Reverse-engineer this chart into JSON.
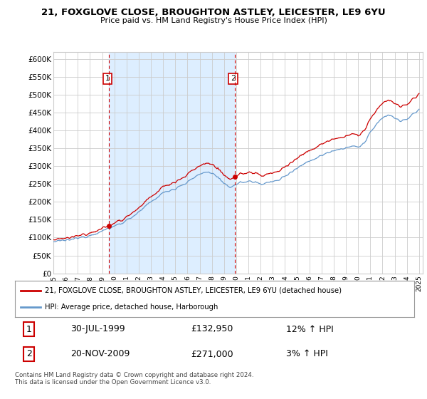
{
  "title_line1": "21, FOXGLOVE CLOSE, BROUGHTON ASTLEY, LEICESTER, LE9 6YU",
  "title_line2": "Price paid vs. HM Land Registry's House Price Index (HPI)",
  "ylim": [
    0,
    620000
  ],
  "yticks": [
    0,
    50000,
    100000,
    150000,
    200000,
    250000,
    300000,
    350000,
    400000,
    450000,
    500000,
    550000,
    600000
  ],
  "ytick_labels": [
    "£0",
    "£50K",
    "£100K",
    "£150K",
    "£200K",
    "£250K",
    "£300K",
    "£350K",
    "£400K",
    "£450K",
    "£500K",
    "£550K",
    "£600K"
  ],
  "sale1_date": "30-JUL-1999",
  "sale1_price": 132950,
  "sale1_hpi_text": "12% ↑ HPI",
  "sale1_year": 1999.58,
  "sale2_date": "20-NOV-2009",
  "sale2_price": 271000,
  "sale2_hpi_text": "3% ↑ HPI",
  "sale2_year": 2009.89,
  "legend_line1": "21, FOXGLOVE CLOSE, BROUGHTON ASTLEY, LEICESTER, LE9 6YU (detached house)",
  "legend_line2": "HPI: Average price, detached house, Harborough",
  "footnote": "Contains HM Land Registry data © Crown copyright and database right 2024.\nThis data is licensed under the Open Government Licence v3.0.",
  "property_color": "#cc0000",
  "hpi_color": "#6699cc",
  "shade_color": "#ddeeff",
  "dashed_line_color": "#cc0000",
  "background_color": "#ffffff",
  "grid_color": "#cccccc",
  "label1_price": "£132,950",
  "label2_price": "£271,000"
}
